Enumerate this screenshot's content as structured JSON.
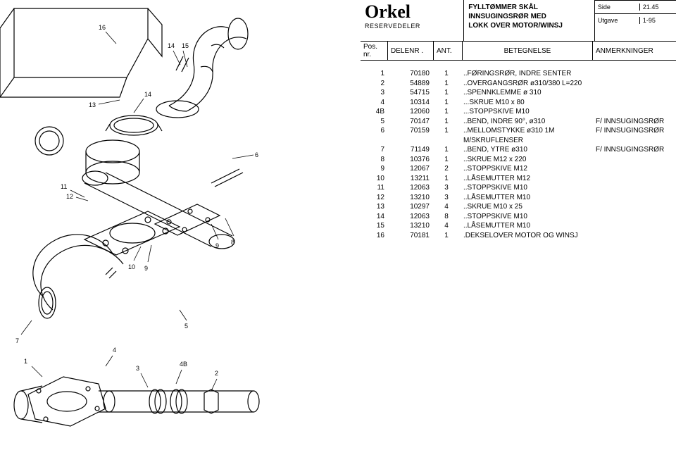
{
  "brand": "Orkel",
  "brand_sub": "RESERVEDELER",
  "title_lines": [
    "FYLLTØMMER SKÅL",
    "INNSUGINGSRØR MED",
    "LOKK OVER MOTOR/WINSJ"
  ],
  "info": {
    "side_label": "Side",
    "side_value": "21.45",
    "utgave_label": "Utgave",
    "utgave_value": "1-95"
  },
  "columns": {
    "pos": "Pos.",
    "pos2": "nr.",
    "del": "DELENR .",
    "ant": "ANT.",
    "bet": "BETEGNELSE",
    "anm": "ANMERKNINGER"
  },
  "rows": [
    {
      "pos": "1",
      "del": "70180",
      "ant": "1",
      "bet": "..FØRINGSRØR, INDRE SENTER",
      "anm": ""
    },
    {
      "pos": "2",
      "del": "54889",
      "ant": "1",
      "bet": "..OVERGANGSRØR ø310/380 L=220",
      "anm": ""
    },
    {
      "pos": "3",
      "del": "54715",
      "ant": "1",
      "bet": "..SPENNKLEMME ø 310",
      "anm": ""
    },
    {
      "pos": "4",
      "del": "10314",
      "ant": "1",
      "bet": "...SKRUE M10 x 80",
      "anm": ""
    },
    {
      "pos": "4B",
      "del": "12060",
      "ant": "1",
      "bet": "...STOPPSKIVE M10",
      "anm": ""
    },
    {
      "pos": "5",
      "del": "70147",
      "ant": "1",
      "bet": "..BEND, INDRE 90°, ø310",
      "anm": "F/ INNSUGINGSRØR"
    },
    {
      "pos": "6",
      "del": "70159",
      "ant": "1",
      "bet": "..MELLOMSTYKKE ø310 1M",
      "anm": "F/ INNSUGINGSRØR"
    },
    {
      "pos": "",
      "del": "",
      "ant": "",
      "bet": "M/SKRUFLENSER",
      "anm": ""
    },
    {
      "pos": "7",
      "del": "71149",
      "ant": "1",
      "bet": "..BEND, YTRE ø310",
      "anm": "F/ INNSUGINGSRØR"
    },
    {
      "pos": "8",
      "del": "10376",
      "ant": "1",
      "bet": "..SKRUE M12 x 220",
      "anm": ""
    },
    {
      "pos": "9",
      "del": "12067",
      "ant": "2",
      "bet": "..STOPPSKIVE M12",
      "anm": ""
    },
    {
      "pos": "10",
      "del": "13211",
      "ant": "1",
      "bet": "..LÅSEMUTTER M12",
      "anm": ""
    },
    {
      "pos": "11",
      "del": "12063",
      "ant": "3",
      "bet": "..STOPPSKIVE M10",
      "anm": ""
    },
    {
      "pos": "12",
      "del": "13210",
      "ant": "3",
      "bet": "..LÅSEMUTTER M10",
      "anm": ""
    },
    {
      "pos": "13",
      "del": "10297",
      "ant": "4",
      "bet": "..SKRUE M10 x 25",
      "anm": ""
    },
    {
      "pos": "14",
      "del": "12063",
      "ant": "8",
      "bet": "..STOPPSKIVE M10",
      "anm": ""
    },
    {
      "pos": "15",
      "del": "13210",
      "ant": "4",
      "bet": "..LÅSEMUTTER M10",
      "anm": ""
    },
    {
      "pos": "16",
      "del": "70181",
      "ant": "1",
      "bet": ".DEKSELOVER MOTOR OG WINSJ",
      "anm": ""
    }
  ],
  "drawing": {
    "stroke": "#000000",
    "stroke_width": 1.2,
    "callouts": [
      "1",
      "2",
      "3",
      "4",
      "4B",
      "5",
      "6",
      "7",
      "8",
      "9",
      "9",
      "10",
      "11",
      "12",
      "13",
      "14",
      "15",
      "16"
    ]
  }
}
